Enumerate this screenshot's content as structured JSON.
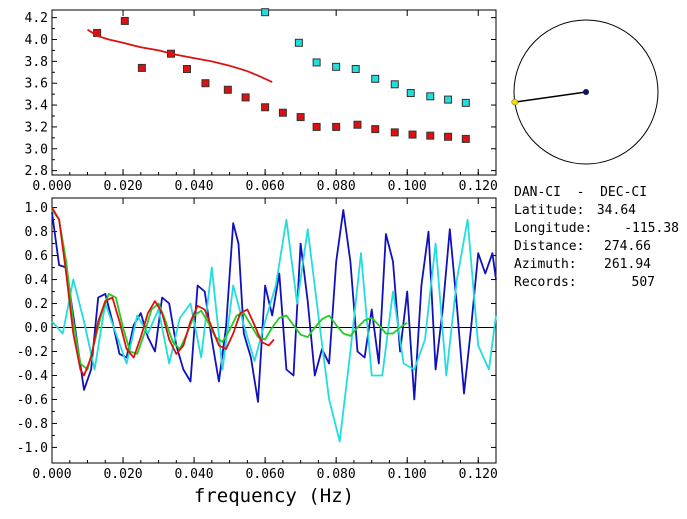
{
  "info": {
    "station_pair": "DAN-CI  -  DEC-CI",
    "latitude_label": "Latitude:",
    "latitude": "34.64",
    "longitude_label": "Longitude:",
    "longitude": "-115.38",
    "distance_label": "Distance:",
    "distance": "274.66",
    "azimuth_label": "Azimuth:",
    "azimuth": "261.94",
    "records_label": "Records:",
    "records": "507"
  },
  "colors": {
    "red": "#dd1111",
    "cyan": "#22dddd",
    "blue": "#1111bb",
    "green": "#22cc22",
    "navy": "#111166",
    "yellow": "#f0e000"
  },
  "chart_data": [
    {
      "type": "scatter",
      "title": "",
      "xlabel": "",
      "ylabel": "",
      "xlim": [
        0.0,
        0.125
      ],
      "ylim": [
        2.76,
        4.27
      ],
      "xticks": [
        "0.000",
        "0.020",
        "0.040",
        "0.060",
        "0.080",
        "0.100",
        "0.120"
      ],
      "yticks": [
        "2.8",
        "3.0",
        "3.2",
        "3.4",
        "3.6",
        "3.8",
        "4.0",
        "4.2"
      ],
      "series": [
        {
          "color": "red",
          "kind": "markers",
          "x": [
            0.0127,
            0.0205,
            0.0253,
            0.0335,
            0.038,
            0.0432,
            0.0495,
            0.0545,
            0.06,
            0.065,
            0.07,
            0.0745,
            0.08,
            0.086,
            0.091,
            0.0965,
            0.1015,
            0.1065,
            0.1115,
            0.1165
          ],
          "y": [
            4.06,
            4.17,
            3.74,
            3.87,
            3.73,
            3.6,
            3.54,
            3.47,
            3.38,
            3.33,
            3.29,
            3.2,
            3.2,
            3.22,
            3.18,
            3.15,
            3.13,
            3.12,
            3.11,
            3.09
          ]
        },
        {
          "color": "cyan",
          "kind": "markers",
          "x": [
            0.06,
            0.0695,
            0.0745,
            0.08,
            0.0855,
            0.091,
            0.0965,
            0.101,
            0.1065,
            0.1115,
            0.1165
          ],
          "y": [
            4.25,
            3.97,
            3.79,
            3.75,
            3.73,
            3.64,
            3.59,
            3.51,
            3.48,
            3.45,
            3.42
          ]
        },
        {
          "color": "red",
          "kind": "line",
          "x": [
            0.01,
            0.013,
            0.016,
            0.02,
            0.025,
            0.03,
            0.035,
            0.04,
            0.045,
            0.05,
            0.055,
            0.058,
            0.062
          ],
          "y": [
            4.09,
            4.03,
            4.0,
            3.97,
            3.93,
            3.9,
            3.86,
            3.83,
            3.8,
            3.76,
            3.71,
            3.67,
            3.61
          ]
        }
      ]
    },
    {
      "type": "line",
      "title": "",
      "xlabel": "frequency (Hz)",
      "ylabel": "",
      "xlim": [
        0.0,
        0.125
      ],
      "ylim": [
        -1.13,
        1.08
      ],
      "xticks": [
        "0.000",
        "0.020",
        "0.040",
        "0.060",
        "0.080",
        "0.100",
        "0.120"
      ],
      "yticks": [
        "1.0",
        "0.8",
        "0.6",
        "0.4",
        "0.2",
        "0.0",
        "-0.2",
        "-0.4",
        "-0.6",
        "-0.8",
        "-1.0"
      ],
      "zero_line": true,
      "series": [
        {
          "color": "blue",
          "x": [
            0.0,
            0.002,
            0.004,
            0.006,
            0.009,
            0.011,
            0.013,
            0.015,
            0.017,
            0.019,
            0.021,
            0.023,
            0.025,
            0.027,
            0.029,
            0.031,
            0.033,
            0.035,
            0.037,
            0.039,
            0.041,
            0.043,
            0.045,
            0.047,
            0.049,
            0.051,
            0.0525,
            0.054,
            0.056,
            0.058,
            0.06,
            0.062,
            0.064,
            0.066,
            0.068,
            0.07,
            0.072,
            0.074,
            0.076,
            0.078,
            0.08,
            0.082,
            0.084,
            0.086,
            0.088,
            0.09,
            0.092,
            0.094,
            0.096,
            0.098,
            0.1,
            0.102,
            0.104,
            0.106,
            0.108,
            0.11,
            0.112,
            0.114,
            0.116,
            0.118,
            0.12,
            0.122,
            0.124,
            0.125
          ],
          "y": [
            0.96,
            0.52,
            0.5,
            0.1,
            -0.52,
            -0.35,
            0.25,
            0.28,
            0.05,
            -0.22,
            -0.25,
            0.02,
            0.12,
            -0.08,
            -0.2,
            0.25,
            0.2,
            -0.15,
            -0.35,
            -0.45,
            0.35,
            0.3,
            -0.1,
            -0.45,
            0.0,
            0.87,
            0.7,
            -0.05,
            -0.25,
            -0.62,
            0.35,
            0.1,
            0.45,
            -0.35,
            -0.4,
            0.7,
            0.22,
            -0.4,
            -0.18,
            -0.3,
            0.55,
            0.98,
            0.55,
            -0.2,
            -0.25,
            0.15,
            -0.3,
            0.78,
            0.55,
            -0.2,
            0.3,
            -0.6,
            0.35,
            0.8,
            -0.35,
            0.15,
            0.82,
            0.18,
            -0.55,
            0.0,
            0.62,
            0.45,
            0.62,
            0.4
          ]
        },
        {
          "color": "cyan",
          "x": [
            0.0,
            0.003,
            0.006,
            0.009,
            0.012,
            0.015,
            0.018,
            0.021,
            0.024,
            0.027,
            0.03,
            0.033,
            0.036,
            0.039,
            0.042,
            0.045,
            0.048,
            0.051,
            0.054,
            0.057,
            0.06,
            0.063,
            0.066,
            0.069,
            0.072,
            0.075,
            0.078,
            0.081,
            0.084,
            0.087,
            0.09,
            0.093,
            0.096,
            0.099,
            0.102,
            0.105,
            0.108,
            0.111,
            0.114,
            0.117,
            0.12,
            0.123,
            0.125
          ],
          "y": [
            0.05,
            -0.05,
            0.4,
            0.05,
            -0.35,
            0.2,
            -0.05,
            -0.3,
            0.1,
            -0.05,
            0.15,
            -0.3,
            0.08,
            0.2,
            -0.25,
            0.5,
            -0.35,
            0.35,
            0.02,
            -0.28,
            0.05,
            0.35,
            0.9,
            0.2,
            0.82,
            0.1,
            -0.6,
            -0.95,
            -0.2,
            0.62,
            -0.4,
            -0.4,
            0.3,
            -0.3,
            -0.35,
            -0.1,
            0.7,
            -0.4,
            0.4,
            0.9,
            -0.15,
            -0.35,
            0.1
          ]
        },
        {
          "color": "green",
          "x": [
            0.0,
            0.002,
            0.004,
            0.006,
            0.008,
            0.01,
            0.012,
            0.014,
            0.016,
            0.018,
            0.02,
            0.022,
            0.024,
            0.026,
            0.028,
            0.03,
            0.032,
            0.034,
            0.036,
            0.038,
            0.04,
            0.042,
            0.044,
            0.046,
            0.048,
            0.05,
            0.052,
            0.054,
            0.056,
            0.058,
            0.06,
            0.062,
            0.064,
            0.066,
            0.068,
            0.07,
            0.072,
            0.074,
            0.076,
            0.078,
            0.08,
            0.082,
            0.084,
            0.086,
            0.088,
            0.09,
            0.092,
            0.094,
            0.096,
            0.098,
            0.1
          ],
          "y": [
            0.98,
            0.9,
            0.55,
            0.05,
            -0.3,
            -0.35,
            -0.12,
            0.12,
            0.28,
            0.25,
            0.0,
            -0.2,
            -0.22,
            -0.05,
            0.15,
            0.2,
            0.05,
            -0.12,
            -0.18,
            -0.05,
            0.1,
            0.14,
            0.04,
            -0.08,
            -0.12,
            -0.02,
            0.1,
            0.12,
            0.02,
            -0.08,
            -0.1,
            0.0,
            0.08,
            0.1,
            0.02,
            -0.06,
            -0.08,
            0.0,
            0.07,
            0.1,
            0.02,
            -0.05,
            -0.07,
            0.0,
            0.06,
            0.08,
            0.02,
            -0.05,
            -0.05,
            0.0,
            0.04
          ]
        },
        {
          "color": "red",
          "x": [
            0.0,
            0.002,
            0.004,
            0.006,
            0.008,
            0.009,
            0.011,
            0.013,
            0.015,
            0.017,
            0.019,
            0.021,
            0.023,
            0.025,
            0.027,
            0.029,
            0.031,
            0.033,
            0.035,
            0.037,
            0.039,
            0.041,
            0.043,
            0.045,
            0.047,
            0.049,
            0.051,
            0.053,
            0.055,
            0.057,
            0.059,
            0.061,
            0.0625
          ],
          "y": [
            1.0,
            0.9,
            0.45,
            -0.05,
            -0.35,
            -0.4,
            -0.25,
            0.05,
            0.22,
            0.25,
            0.05,
            -0.18,
            -0.25,
            -0.08,
            0.12,
            0.22,
            0.12,
            -0.1,
            -0.22,
            -0.15,
            0.05,
            0.18,
            0.15,
            0.0,
            -0.15,
            -0.18,
            -0.05,
            0.12,
            0.15,
            0.02,
            -0.12,
            -0.15,
            -0.1
          ]
        }
      ]
    }
  ],
  "azimuth_dial": {
    "azimuth_deg": 261.94,
    "vector_length": 0.5
  }
}
